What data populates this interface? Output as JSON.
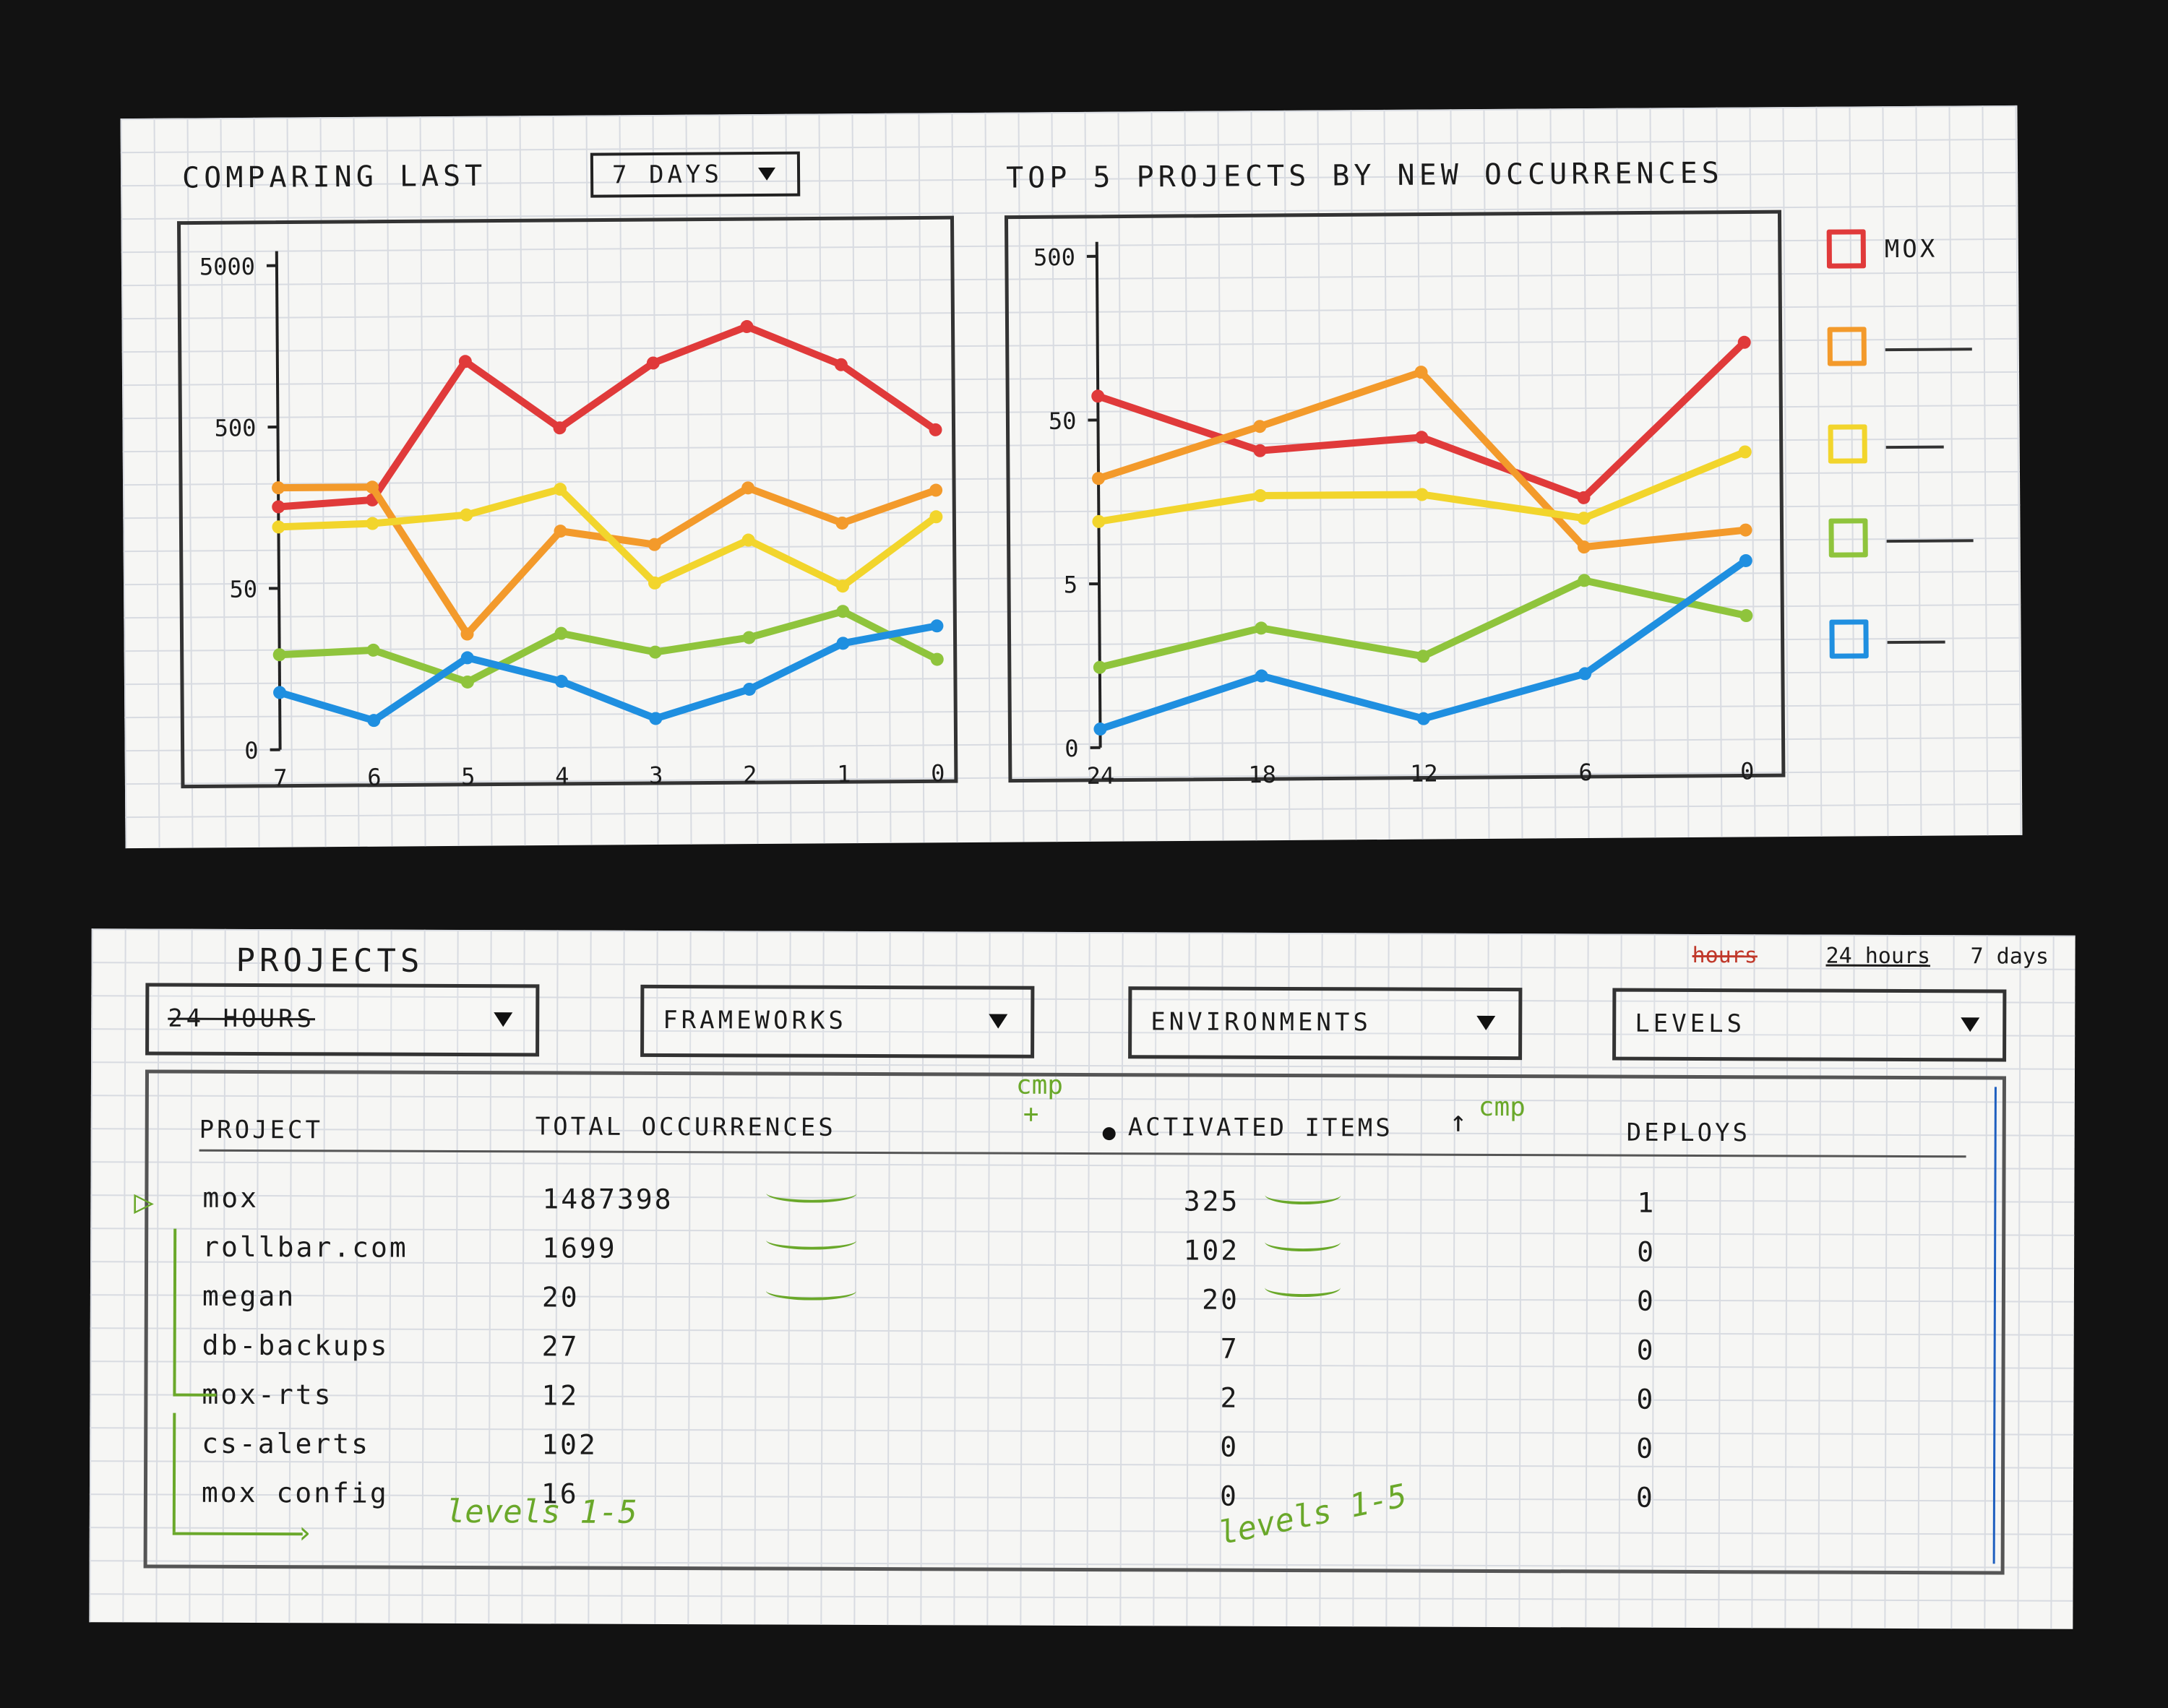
{
  "top_panel": {
    "comparing_label": "COMPARING LAST",
    "range_dropdown": "7 DAYS",
    "chart2_title": "TOP 5 PROJECTS BY NEW OCCURRENCES",
    "legend": [
      {
        "label": "MOX",
        "color": "#e03a3a"
      },
      {
        "label": "",
        "color": "#f39a2b"
      },
      {
        "label": "",
        "color": "#f2d52c"
      },
      {
        "label": "",
        "color": "#8fc43c"
      },
      {
        "label": "",
        "color": "#1f8fe0"
      }
    ]
  },
  "chart_data": [
    {
      "type": "line",
      "x": [
        7,
        6,
        5,
        4,
        3,
        2,
        1,
        0
      ],
      "y_ticks": [
        0,
        50,
        500,
        5000
      ],
      "y_scale": "log",
      "ylim": [
        0,
        5000
      ],
      "grid": true,
      "series": [
        {
          "name": "MOX",
          "color": "#e03a3a",
          "values": [
            160,
            175,
            1250,
            480,
            1200,
            2000,
            1150,
            450
          ]
        },
        {
          "color": "#f39a2b",
          "values": [
            210,
            210,
            16,
            110,
            90,
            200,
            120,
            190
          ]
        },
        {
          "color": "#f2d52c",
          "values": [
            120,
            125,
            140,
            200,
            52,
            95,
            48,
            130
          ]
        },
        {
          "color": "#8fc43c",
          "values": [
            10,
            11,
            5,
            16,
            10,
            14,
            26,
            8
          ]
        },
        {
          "color": "#1f8fe0",
          "values": [
            4,
            2,
            9,
            5,
            2,
            4,
            12,
            18
          ]
        }
      ]
    },
    {
      "type": "line",
      "x": [
        24,
        18,
        12,
        6,
        0
      ],
      "y_ticks": [
        0,
        5,
        50,
        500
      ],
      "y_scale": "log",
      "ylim": [
        0,
        500
      ],
      "grid": true,
      "series": [
        {
          "name": "MOX",
          "color": "#e03a3a",
          "values": [
            70,
            32,
            38,
            16,
            140
          ]
        },
        {
          "color": "#f39a2b",
          "values": [
            22,
            45,
            95,
            8,
            10
          ]
        },
        {
          "color": "#f2d52c",
          "values": [
            12,
            17,
            17,
            12,
            30
          ]
        },
        {
          "color": "#8fc43c",
          "values": [
            2.2,
            3.2,
            2.4,
            5.0,
            3.5
          ]
        },
        {
          "color": "#1f8fe0",
          "values": [
            1.2,
            2.0,
            1.3,
            2.0,
            6.5
          ]
        }
      ]
    }
  ],
  "projects_panel": {
    "title": "PROJECTS",
    "range_options": [
      "hours",
      "24 hours",
      "7 days"
    ],
    "filters": [
      {
        "label": "24 HOURS"
      },
      {
        "label": "FRAMEWORKS"
      },
      {
        "label": "ENVIRONMENTS"
      },
      {
        "label": "LEVELS"
      }
    ],
    "columns": {
      "project": "PROJECT",
      "total": "TOTAL OCCURRENCES",
      "cmp1": "cmp",
      "activated": "ACTIVATED ITEMS",
      "cmp2": "cmp",
      "deploys": "DEPLOYS"
    },
    "rows": [
      {
        "project": "mox",
        "total": "1487398",
        "activated": "325",
        "deploys": "1"
      },
      {
        "project": "rollbar.com",
        "total": "1699",
        "activated": "102",
        "deploys": "0"
      },
      {
        "project": "megan",
        "total": "20",
        "activated": "20",
        "deploys": "0"
      },
      {
        "project": "db-backups",
        "total": "27",
        "activated": "7",
        "deploys": "0"
      },
      {
        "project": "mox-rts",
        "total": "12",
        "activated": "2",
        "deploys": "0"
      },
      {
        "project": "cs-alerts",
        "total": "102",
        "activated": "0",
        "deploys": "0"
      },
      {
        "project": "mox config",
        "total": "16",
        "activated": "0",
        "deploys": "0"
      }
    ],
    "notes": {
      "levels1": "levels 1-5",
      "levels2": "levels 1-5"
    }
  }
}
